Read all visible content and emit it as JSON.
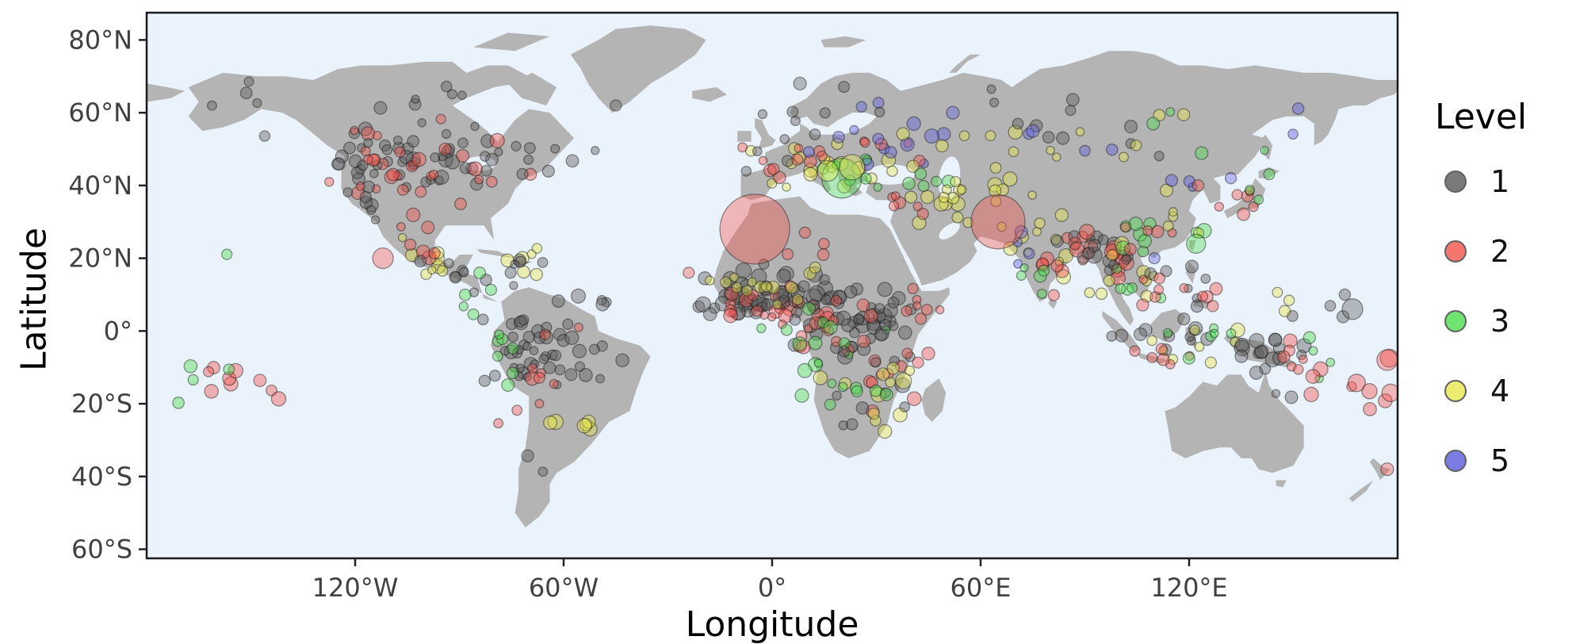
{
  "figure": {
    "xlabel": "Longitude",
    "ylabel": "Latitude"
  },
  "axes": {
    "x_ticks": [
      {
        "value": -120,
        "label": "120°W"
      },
      {
        "value": -60,
        "label": "60°W"
      },
      {
        "value": 0,
        "label": "0°"
      },
      {
        "value": 60,
        "label": "60°E"
      },
      {
        "value": 120,
        "label": "120°E"
      }
    ],
    "y_ticks": [
      {
        "value": 80,
        "label": "80°N"
      },
      {
        "value": 60,
        "label": "60°N"
      },
      {
        "value": 40,
        "label": "40°N"
      },
      {
        "value": 20,
        "label": "20°N"
      },
      {
        "value": 0,
        "label": "0°"
      },
      {
        "value": -20,
        "label": "20°S"
      },
      {
        "value": -40,
        "label": "40°S"
      },
      {
        "value": -60,
        "label": "60°S"
      }
    ]
  },
  "legend": {
    "title": "Level",
    "items": [
      {
        "label": "1",
        "color": "#5a5a5a"
      },
      {
        "label": "2",
        "color": "#f4544c"
      },
      {
        "label": "3",
        "color": "#4dde4d"
      },
      {
        "label": "4",
        "color": "#e8e84d"
      },
      {
        "label": "5",
        "color": "#5c5cdf"
      }
    ]
  },
  "colors": {
    "ocean": "#eaf2fc",
    "land": "#b4b4b4",
    "panel_border": "#1a1a1a",
    "tick_text": "#404040"
  },
  "chart_data": {
    "type": "scatter",
    "title": "",
    "xlabel": "Longitude",
    "ylabel": "Latitude",
    "xlim": [
      -180,
      180
    ],
    "ylim": [
      -62.5,
      87.5
    ],
    "legend_title": "Level",
    "legend_position": "right",
    "basemap": "world-coastlines-grey",
    "point_alpha": 0.42,
    "levels": [
      {
        "level": 1,
        "color": "#5a5a5a"
      },
      {
        "level": 2,
        "color": "#f4544c"
      },
      {
        "level": 3,
        "color": "#4dde4d"
      },
      {
        "level": 4,
        "color": "#e8e84d"
      },
      {
        "level": 5,
        "color": "#5c5cdf"
      }
    ],
    "cluster_format": [
      "lon",
      "lat",
      "sd_lon",
      "sd_lat",
      "n",
      "level",
      "r_min_px",
      "r_max_px"
    ],
    "clusters": [
      [
        -103,
        46,
        13,
        6,
        38,
        1,
        5,
        9
      ],
      [
        -100,
        44,
        13,
        6,
        24,
        2,
        5,
        9
      ],
      [
        -120,
        41,
        4,
        7,
        16,
        1,
        5,
        8
      ],
      [
        -118,
        46,
        5,
        5,
        8,
        2,
        5,
        8
      ],
      [
        -75,
        44,
        6,
        4,
        8,
        1,
        5,
        8
      ],
      [
        -97,
        20,
        6,
        3,
        8,
        4,
        5,
        9
      ],
      [
        -101,
        23,
        6,
        4,
        6,
        2,
        5,
        9
      ],
      [
        -90,
        15,
        5,
        3,
        8,
        1,
        5,
        8
      ],
      [
        -86,
        12,
        5,
        3,
        5,
        3,
        5,
        8
      ],
      [
        -72,
        19,
        5,
        2,
        6,
        4,
        5,
        9
      ],
      [
        -70,
        18,
        4,
        2,
        5,
        1,
        5,
        8
      ],
      [
        -105,
        62,
        14,
        4,
        7,
        1,
        5,
        8
      ],
      [
        -150,
        62,
        6,
        4,
        5,
        1,
        5,
        8
      ],
      [
        -55,
        49,
        4,
        3,
        3,
        1,
        5,
        8
      ],
      [
        -62,
        -5,
        9,
        7,
        42,
        1,
        5,
        9
      ],
      [
        -70,
        0,
        5,
        6,
        10,
        1,
        5,
        8
      ],
      [
        -65,
        -12,
        8,
        6,
        10,
        2,
        5,
        9
      ],
      [
        -77,
        -5,
        2,
        6,
        7,
        3,
        5,
        8
      ],
      [
        -60,
        -22,
        6,
        4,
        6,
        4,
        6,
        10
      ],
      [
        -68,
        -38,
        3,
        4,
        2,
        1,
        5,
        8
      ],
      [
        -152,
        -13,
        9,
        5,
        9,
        2,
        6,
        10
      ],
      [
        -160,
        -18,
        8,
        4,
        4,
        3,
        6,
        9
      ],
      [
        -156,
        20,
        1,
        1,
        1,
        3,
        5,
        7
      ],
      [
        -8,
        9,
        7,
        3,
        36,
        1,
        6,
        10
      ],
      [
        0,
        7,
        8,
        3,
        24,
        2,
        5,
        9
      ],
      [
        8,
        9,
        6,
        4,
        20,
        1,
        6,
        10
      ],
      [
        -2,
        13,
        10,
        3,
        14,
        4,
        5,
        8
      ],
      [
        20,
        2,
        8,
        6,
        32,
        1,
        6,
        10
      ],
      [
        18,
        -2,
        6,
        5,
        14,
        2,
        5,
        9
      ],
      [
        15,
        -6,
        8,
        6,
        16,
        3,
        5,
        9
      ],
      [
        32,
        0,
        5,
        6,
        18,
        1,
        6,
        9
      ],
      [
        35,
        -8,
        5,
        6,
        12,
        2,
        5,
        9
      ],
      [
        30,
        -15,
        6,
        5,
        12,
        4,
        6,
        10
      ],
      [
        25,
        -25,
        6,
        4,
        6,
        1,
        5,
        8
      ],
      [
        28,
        -20,
        5,
        4,
        5,
        3,
        5,
        8
      ],
      [
        42,
        8,
        4,
        4,
        6,
        2,
        5,
        8
      ],
      [
        12,
        20,
        8,
        3,
        4,
        2,
        5,
        8
      ],
      [
        12,
        46,
        10,
        4,
        18,
        4,
        5,
        9
      ],
      [
        8,
        48,
        8,
        4,
        10,
        2,
        5,
        8
      ],
      [
        2,
        50,
        6,
        4,
        8,
        1,
        5,
        8
      ],
      [
        22,
        44,
        6,
        3,
        7,
        3,
        5,
        8
      ],
      [
        27,
        50,
        8,
        4,
        6,
        5,
        5,
        8
      ],
      [
        35,
        52,
        6,
        4,
        5,
        2,
        5,
        8
      ],
      [
        42,
        55,
        8,
        4,
        5,
        5,
        6,
        9
      ],
      [
        55,
        52,
        10,
        4,
        6,
        4,
        6,
        9
      ],
      [
        44,
        34,
        6,
        3,
        8,
        4,
        5,
        9
      ],
      [
        38,
        36,
        5,
        3,
        6,
        2,
        5,
        8
      ],
      [
        47,
        40,
        5,
        2,
        5,
        3,
        5,
        8
      ],
      [
        60,
        40,
        8,
        4,
        6,
        4,
        5,
        9
      ],
      [
        70,
        46,
        8,
        4,
        4,
        4,
        5,
        8
      ],
      [
        57,
        33,
        6,
        4,
        5,
        4,
        5,
        8
      ],
      [
        77,
        22,
        6,
        5,
        12,
        4,
        5,
        9
      ],
      [
        80,
        20,
        5,
        5,
        8,
        2,
        5,
        9
      ],
      [
        73,
        20,
        4,
        4,
        4,
        5,
        5,
        8
      ],
      [
        78,
        13,
        3,
        4,
        5,
        3,
        5,
        8
      ],
      [
        85,
        25,
        4,
        2,
        5,
        1,
        5,
        8
      ],
      [
        90,
        24,
        3,
        2,
        6,
        2,
        6,
        10
      ],
      [
        95,
        22,
        3,
        3,
        8,
        1,
        6,
        10
      ],
      [
        96,
        19,
        3,
        3,
        8,
        2,
        6,
        10
      ],
      [
        101,
        15,
        4,
        4,
        8,
        4,
        5,
        9
      ],
      [
        104,
        12,
        4,
        4,
        6,
        3,
        5,
        8
      ],
      [
        105,
        18,
        4,
        3,
        5,
        1,
        5,
        8
      ],
      [
        108,
        14,
        3,
        4,
        4,
        2,
        5,
        8
      ],
      [
        112,
        28,
        6,
        5,
        8,
        3,
        6,
        10
      ],
      [
        108,
        24,
        5,
        4,
        6,
        2,
        5,
        8
      ],
      [
        114,
        33,
        6,
        5,
        5,
        4,
        5,
        8
      ],
      [
        117,
        40,
        5,
        3,
        3,
        5,
        5,
        8
      ],
      [
        127,
        37,
        3,
        2,
        3,
        2,
        5,
        8
      ],
      [
        138,
        37,
        3,
        2,
        4,
        2,
        5,
        8
      ],
      [
        140,
        40,
        3,
        3,
        3,
        3,
        5,
        7
      ],
      [
        150,
        55,
        5,
        3,
        2,
        5,
        6,
        8
      ],
      [
        113,
        -2,
        8,
        3,
        10,
        1,
        5,
        9
      ],
      [
        120,
        -5,
        8,
        3,
        8,
        4,
        5,
        9
      ],
      [
        110,
        -7,
        6,
        2,
        6,
        2,
        5,
        8
      ],
      [
        122,
        0,
        6,
        4,
        6,
        3,
        5,
        8
      ],
      [
        122,
        12,
        3,
        4,
        6,
        1,
        5,
        8
      ],
      [
        124,
        8,
        3,
        3,
        5,
        2,
        5,
        8
      ],
      [
        144,
        -6,
        5,
        3,
        16,
        1,
        6,
        10
      ],
      [
        150,
        -9,
        4,
        3,
        6,
        2,
        5,
        9
      ],
      [
        155,
        -8,
        4,
        3,
        4,
        3,
        5,
        8
      ],
      [
        162,
        -15,
        6,
        4,
        5,
        2,
        6,
        10
      ],
      [
        172,
        -16,
        5,
        4,
        4,
        2,
        8,
        12
      ],
      [
        160,
        5,
        6,
        3,
        4,
        1,
        5,
        8
      ],
      [
        150,
        7,
        4,
        2,
        3,
        4,
        5,
        7
      ],
      [
        146,
        -18,
        2,
        2,
        2,
        1,
        5,
        8
      ],
      [
        95,
        58,
        18,
        4,
        8,
        1,
        5,
        8
      ],
      [
        105,
        55,
        15,
        4,
        6,
        4,
        5,
        8
      ],
      [
        120,
        52,
        10,
        4,
        4,
        3,
        5,
        8
      ],
      [
        88,
        55,
        8,
        3,
        3,
        5,
        6,
        8
      ],
      [
        60,
        62,
        8,
        3,
        3,
        1,
        5,
        7
      ],
      [
        30,
        61,
        5,
        3,
        3,
        5,
        5,
        8
      ],
      [
        20,
        62,
        5,
        3,
        3,
        1,
        5,
        7
      ]
    ],
    "point_format": [
      "lon",
      "lat",
      "level",
      "r_px"
    ],
    "notable_points": [
      [
        -5,
        28,
        2,
        44
      ],
      [
        65,
        30,
        2,
        34
      ],
      [
        20,
        42,
        3,
        25
      ],
      [
        23,
        45,
        4,
        16
      ],
      [
        16,
        44,
        4,
        13
      ],
      [
        167,
        6,
        1,
        13
      ],
      [
        177,
        -8,
        2,
        13
      ],
      [
        178,
        -17,
        2,
        11
      ],
      [
        -112,
        20,
        2,
        13
      ],
      [
        8,
        68,
        1,
        8
      ],
      [
        177,
        -38,
        2,
        8
      ],
      [
        122,
        24,
        3,
        12
      ],
      [
        -45,
        62,
        1,
        7
      ],
      [
        52,
        60,
        5,
        8
      ],
      [
        75,
        55,
        5,
        8
      ],
      [
        110,
        20,
        5,
        7
      ],
      [
        132,
        42,
        5,
        7
      ],
      [
        -24,
        16,
        2,
        7
      ]
    ]
  }
}
